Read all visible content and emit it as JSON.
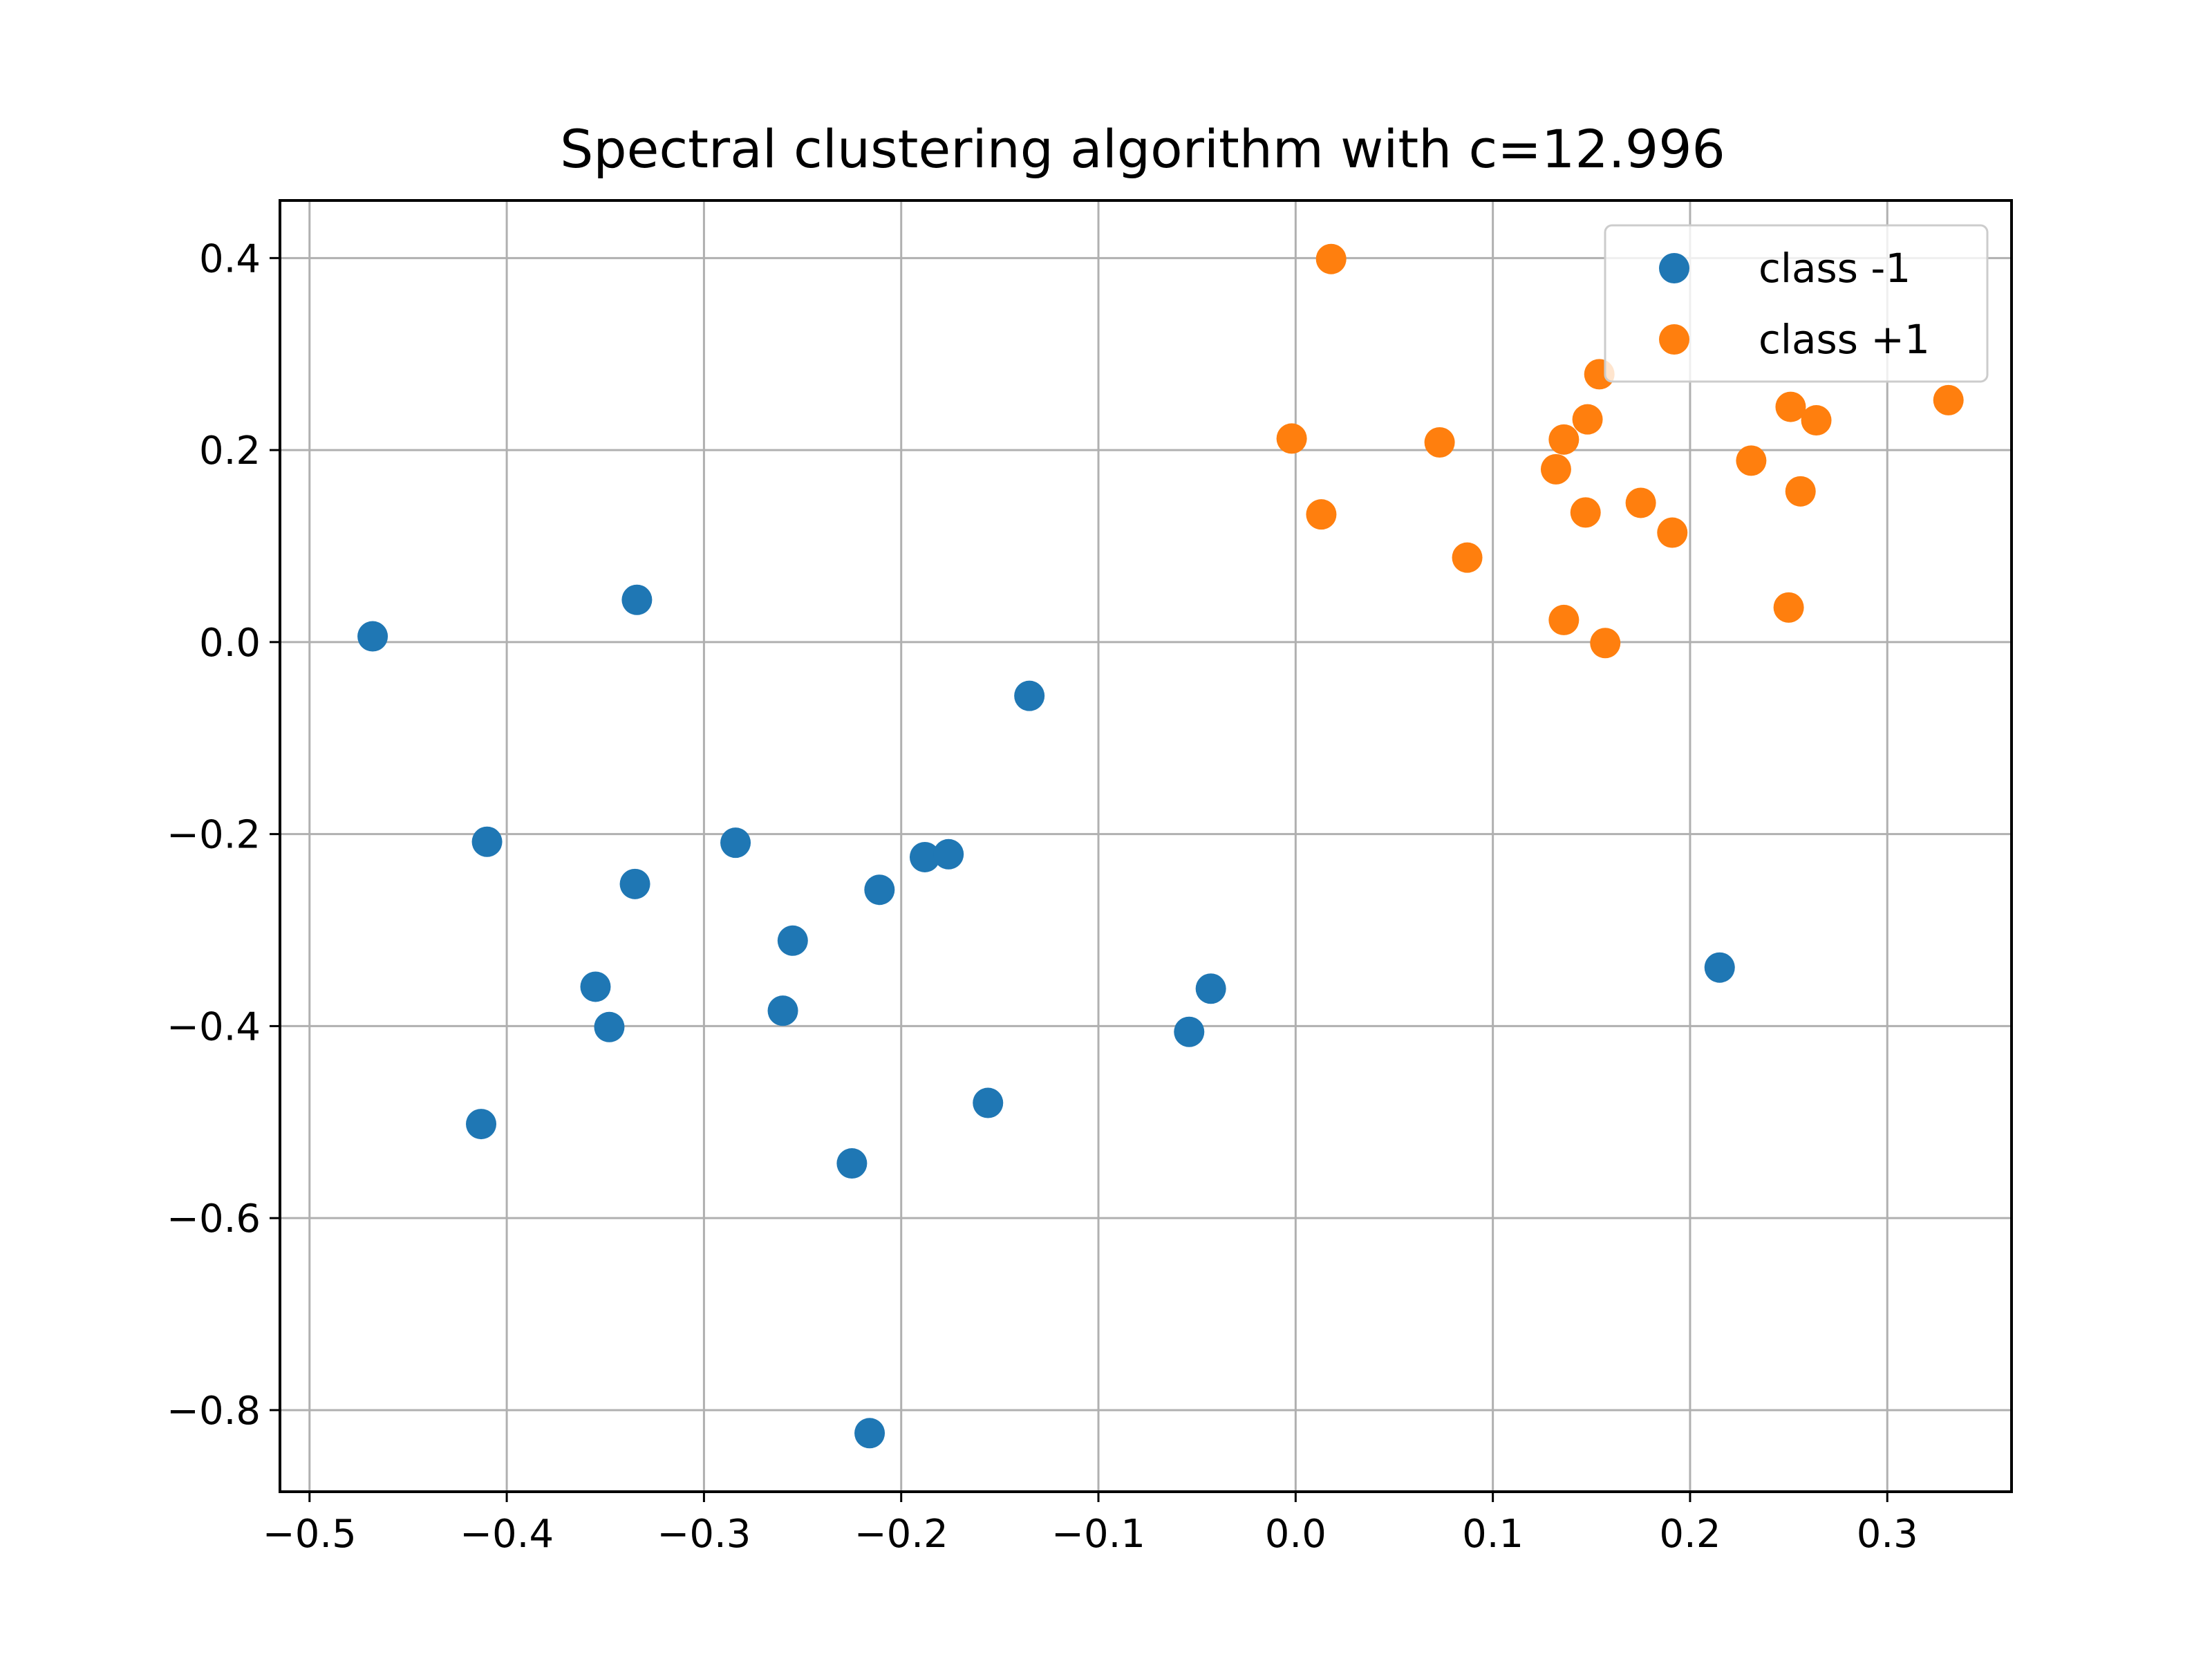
{
  "chart_data": {
    "type": "scatter",
    "title": "Spectral clustering algorithm with c=12.996",
    "xlabel": "",
    "ylabel": "",
    "xlim": [
      -0.515,
      0.363
    ],
    "ylim": [
      -0.885,
      0.46
    ],
    "grid": true,
    "legend_position": "top-right",
    "x_ticks": [
      -0.5,
      -0.4,
      -0.3,
      -0.2,
      -0.1,
      0.0,
      0.1,
      0.2,
      0.3
    ],
    "x_tick_labels": [
      "−0.5",
      "−0.4",
      "−0.3",
      "−0.2",
      "−0.1",
      "0.0",
      "0.1",
      "0.2",
      "0.3"
    ],
    "y_ticks": [
      0.4,
      0.2,
      0.0,
      -0.2,
      -0.4,
      -0.6,
      -0.8
    ],
    "y_tick_labels": [
      "0.4",
      "0.2",
      "0.0",
      "−0.2",
      "−0.4",
      "−0.6",
      "−0.8"
    ],
    "series": [
      {
        "name": "class -1",
        "color": "#1f77b4",
        "points": [
          [
            -0.468,
            0.006
          ],
          [
            -0.334,
            0.044
          ],
          [
            -0.41,
            -0.208
          ],
          [
            -0.335,
            -0.252
          ],
          [
            -0.284,
            -0.209
          ],
          [
            -0.255,
            -0.311
          ],
          [
            -0.355,
            -0.359
          ],
          [
            -0.348,
            -0.401
          ],
          [
            -0.26,
            -0.384
          ],
          [
            -0.211,
            -0.258
          ],
          [
            -0.188,
            -0.224
          ],
          [
            -0.176,
            -0.221
          ],
          [
            -0.135,
            -0.056
          ],
          [
            -0.413,
            -0.502
          ],
          [
            -0.225,
            -0.543
          ],
          [
            -0.156,
            -0.48
          ],
          [
            -0.054,
            -0.406
          ],
          [
            -0.043,
            -0.361
          ],
          [
            -0.216,
            -0.824
          ],
          [
            0.215,
            -0.339
          ]
        ]
      },
      {
        "name": "class +1",
        "color": "#ff7f0e",
        "points": [
          [
            0.018,
            0.399
          ],
          [
            -0.002,
            0.212
          ],
          [
            0.013,
            0.133
          ],
          [
            0.073,
            0.208
          ],
          [
            0.087,
            0.088
          ],
          [
            0.132,
            0.18
          ],
          [
            0.136,
            0.211
          ],
          [
            0.148,
            0.232
          ],
          [
            0.154,
            0.279
          ],
          [
            0.147,
            0.135
          ],
          [
            0.136,
            0.023
          ],
          [
            0.157,
            -0.001
          ],
          [
            0.175,
            0.145
          ],
          [
            0.191,
            0.114
          ],
          [
            0.231,
            0.189
          ],
          [
            0.251,
            0.245
          ],
          [
            0.264,
            0.231
          ],
          [
            0.256,
            0.157
          ],
          [
            0.25,
            0.036
          ],
          [
            0.331,
            0.252
          ]
        ]
      }
    ]
  }
}
